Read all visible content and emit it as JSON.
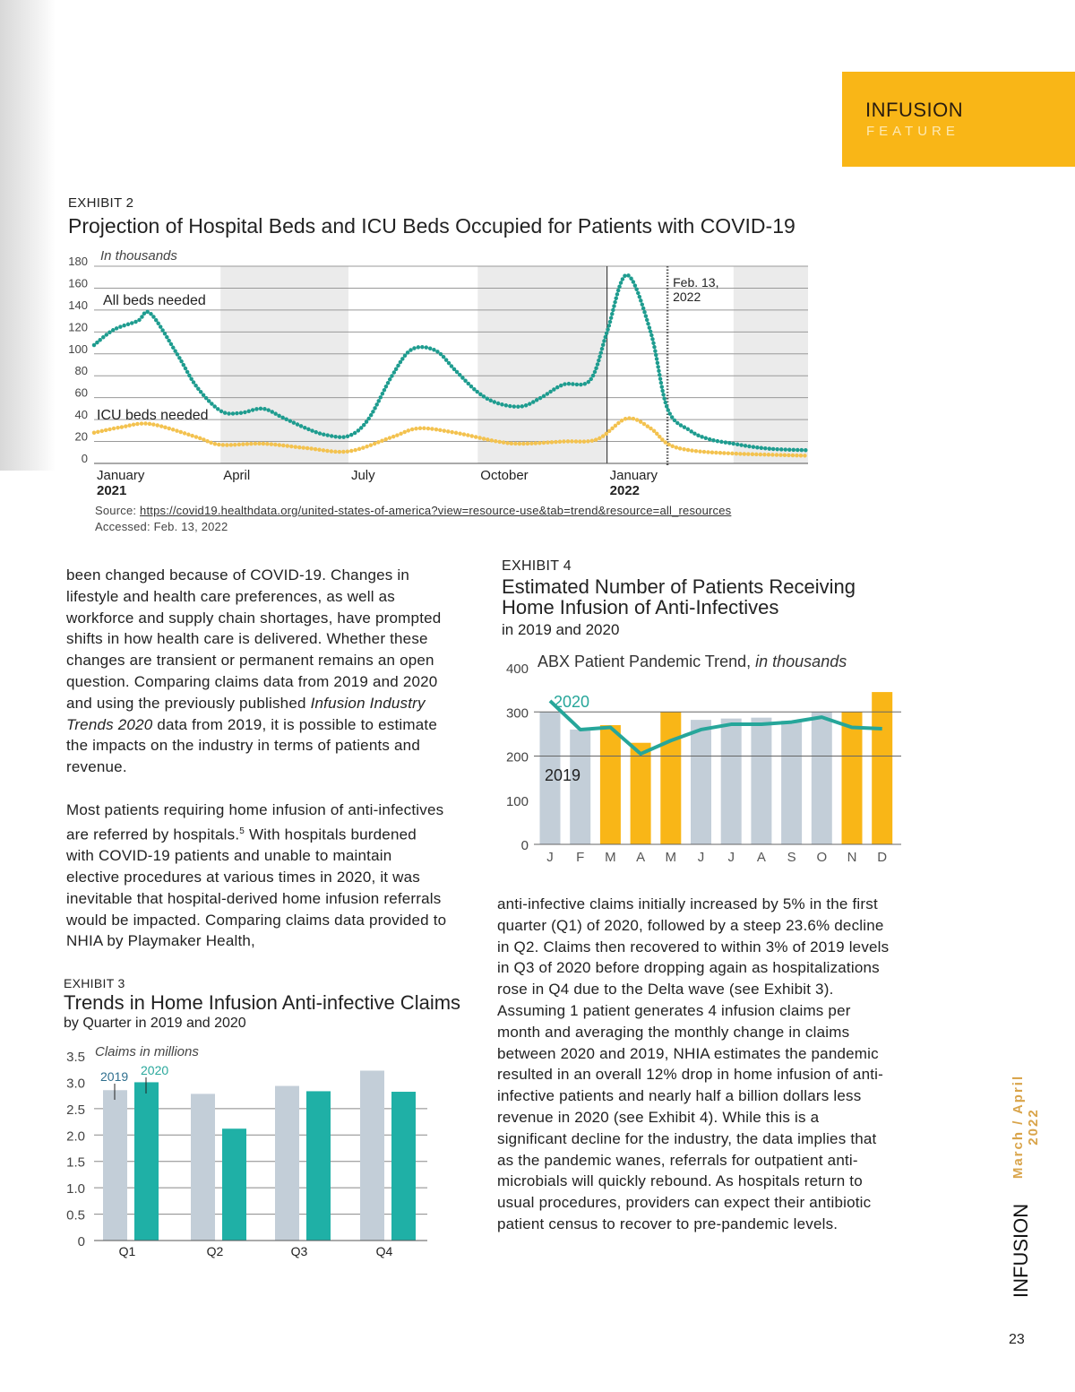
{
  "header": {
    "brand": "INFUSION",
    "section": "FEATURE",
    "brand_color": "#f9b617"
  },
  "exhibit2": {
    "label": "EXHIBIT 2",
    "title": "Projection of Hospital Beds and ICU Beds Occupied for Patients with COVID-19",
    "source_prefix": "Source: ",
    "source_url": "https://covid19.healthdata.org/united-states-of-america?view=resource-use&tab=trend&resource=all_resources",
    "accessed": "Accessed: Feb. 13, 2022"
  },
  "exhibit3": {
    "label": "EXHIBIT 3",
    "title": "Trends in Home Infusion Anti-infective Claims",
    "subtitle": "by Quarter in 2019 and 2020"
  },
  "exhibit4": {
    "label": "EXHIBIT 4",
    "title_line1": "Estimated Number of Patients Receiving",
    "title_line2": "Home Infusion of Anti-Infectives",
    "subtitle": "in 2019 and 2020"
  },
  "left_text": {
    "p1_a": "been changed because of COVID-19. Changes in lifestyle and health care preferences, as well as workforce and supply chain shortages, have prompted shifts in how health care is delivered. Whether these changes are transient or permanent remains an open question. Comparing claims data from 2019 and 2020 and using the previously published ",
    "p1_italic": "Infusion Industry Trends 2020",
    "p1_b": " data from 2019, it is possible to estimate the impacts on the industry in terms of patients and revenue.",
    "p2_a": "Most patients requiring home infusion of anti-infectives are referred by hospitals.",
    "p2_sup": "5",
    "p2_b": " With hospitals burdened with COVID-19 patients and unable to maintain elective procedures at various times in 2020, it was inevitable that hospital-derived home infusion referrals would be impacted. Comparing claims data provided to NHIA by Playmaker Health,"
  },
  "right_text": "anti-infective claims initially increased by 5% in the first quarter (Q1) of 2020, followed by a steep 23.6% decline in Q2. Claims then recovered to within 3% of 2019 levels in Q3 of 2020 before dropping again as hospitalizations rose in Q4 due to the Delta wave (see Exhibit 3). Assuming 1 patient generates 4 infusion claims per month and averaging the monthly change in claims between 2020 and 2019, NHIA estimates the pandemic resulted in an overall 12% drop in home infusion of anti-infective patients and nearly half a billion dollars less revenue in 2020 (see Exhibit 4). While this is a significant decline for the industry, the data implies that as the pandemic wanes, referrals for outpatient anti-microbials will quickly rebound. As hospitals return to usual procedures, providers can expect their antibiotic patient census to recover to pre-pandemic levels.",
  "footer": {
    "issue": "March / April 2022",
    "brand": "INFUSION",
    "page": "23"
  },
  "chart_data": [
    {
      "type": "line",
      "ylabel": "In thousands",
      "ylim": [
        0,
        180
      ],
      "yticks": [
        "0",
        "20",
        "40",
        "60",
        "80",
        "100",
        "120",
        "140",
        "160",
        "180"
      ],
      "xlim": [
        "2021-01-01",
        "2022-05-24"
      ],
      "xticks": [
        {
          "date": "2021-01-01",
          "label": "January",
          "year": "2021"
        },
        {
          "date": "2021-04-01",
          "label": "April",
          "year": ""
        },
        {
          "date": "2021-07-01",
          "label": "July",
          "year": ""
        },
        {
          "date": "2021-10-01",
          "label": "October",
          "year": ""
        },
        {
          "date": "2022-01-01",
          "label": "January",
          "year": "2022"
        }
      ],
      "shaded_periods": [
        [
          "2021-04-01",
          "2021-07-01"
        ],
        [
          "2021-10-01",
          "2022-01-01"
        ],
        [
          "2022-04-01",
          "2022-05-24"
        ]
      ],
      "marker_line": {
        "date": "2022-01-01"
      },
      "annotation": {
        "date": "2022-02-13",
        "line1": "Feb. 13,",
        "line2": "2022"
      },
      "grid": true,
      "series": [
        {
          "name": "All beds needed",
          "color": "#1e9c8f",
          "x": [
            "2021-01-01",
            "2021-01-15",
            "2021-02-01",
            "2021-02-10",
            "2021-03-01",
            "2021-03-15",
            "2021-04-01",
            "2021-04-15",
            "2021-05-01",
            "2021-05-15",
            "2021-06-01",
            "2021-06-15",
            "2021-07-01",
            "2021-07-15",
            "2021-08-01",
            "2021-08-15",
            "2021-09-01",
            "2021-09-15",
            "2021-10-01",
            "2021-10-15",
            "2021-11-01",
            "2021-11-15",
            "2021-12-01",
            "2021-12-20",
            "2022-01-01",
            "2022-01-15",
            "2022-02-01",
            "2022-02-13",
            "2022-03-01",
            "2022-03-15",
            "2022-04-01",
            "2022-04-15",
            "2022-05-01",
            "2022-05-24"
          ],
          "y": [
            108,
            122,
            130,
            137,
            100,
            70,
            48,
            46,
            50,
            42,
            32,
            26,
            25,
            40,
            80,
            104,
            103,
            85,
            65,
            55,
            52,
            60,
            72,
            76,
            120,
            172,
            120,
            50,
            30,
            22,
            18,
            15,
            13,
            12
          ]
        },
        {
          "name": "ICU beds needed",
          "color": "#f3c24f",
          "x": [
            "2021-01-01",
            "2021-01-20",
            "2021-02-10",
            "2021-03-15",
            "2021-04-01",
            "2021-05-01",
            "2021-06-01",
            "2021-07-01",
            "2021-08-01",
            "2021-08-20",
            "2021-09-15",
            "2021-10-15",
            "2021-11-01",
            "2021-12-01",
            "2021-12-25",
            "2022-01-15",
            "2022-02-01",
            "2022-02-13",
            "2022-03-01",
            "2022-04-01",
            "2022-05-24"
          ],
          "y": [
            28,
            33,
            36,
            24,
            17,
            18,
            14,
            11,
            24,
            32,
            28,
            20,
            18,
            20,
            22,
            41,
            32,
            18,
            12,
            9,
            7
          ]
        }
      ]
    },
    {
      "type": "bar",
      "ylabel": "Claims in millions",
      "ylim": [
        0,
        3.5
      ],
      "yticks": [
        "0",
        "0.5",
        "1.0",
        "1.5",
        "2.0",
        "2.5",
        "3.0",
        "3.5"
      ],
      "categories": [
        "Q1",
        "Q2",
        "Q3",
        "Q4"
      ],
      "grid": true,
      "series": [
        {
          "name": "2019",
          "color": "#c3ced8",
          "label_color": "#2f6f8e",
          "values": [
            2.85,
            2.78,
            2.93,
            3.22
          ]
        },
        {
          "name": "2020",
          "color": "#1fb0a6",
          "label_color": "#2aa89c",
          "values": [
            3.0,
            2.12,
            2.83,
            2.82
          ]
        }
      ]
    },
    {
      "type": "bar",
      "title": "ABX Patient Pandemic Trend,",
      "title_italic": "in thousands",
      "ylim": [
        0,
        400
      ],
      "yticks": [
        "0",
        "100",
        "200",
        "300",
        "400"
      ],
      "categories": [
        "J",
        "F",
        "M",
        "A",
        "M",
        "J",
        "J",
        "A",
        "S",
        "O",
        "N",
        "D"
      ],
      "grid": true,
      "series": [
        {
          "name": "2019",
          "type": "bar",
          "values": [
            300,
            260,
            270,
            230,
            300,
            282,
            285,
            287,
            280,
            300,
            300,
            345
          ],
          "colors": [
            "#c3ced8",
            "#c3ced8",
            "#f9b617",
            "#f9b617",
            "#f9b617",
            "#c3ced8",
            "#c3ced8",
            "#c3ced8",
            "#c3ced8",
            "#c3ced8",
            "#f9b617",
            "#f9b617"
          ]
        },
        {
          "name": "2020",
          "type": "line",
          "color": "#26a69a",
          "values": [
            325,
            260,
            265,
            205,
            235,
            260,
            272,
            272,
            277,
            288,
            265,
            262
          ]
        }
      ]
    }
  ]
}
